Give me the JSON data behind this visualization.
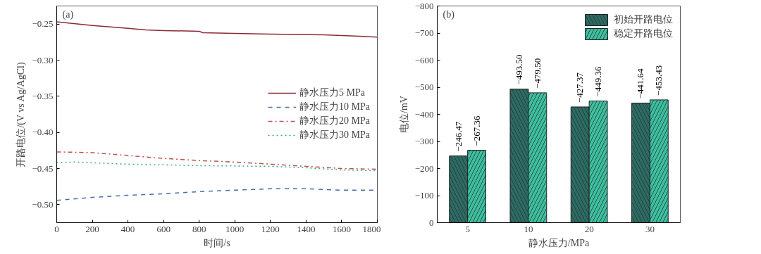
{
  "chart_data": [
    {
      "type": "line",
      "title": "(a)",
      "xlabel": "时间/s",
      "ylabel": "开路电位/(V vs Ag/AgCl)",
      "xlim": [
        0,
        1800
      ],
      "xticks": [
        0,
        200,
        400,
        600,
        800,
        1000,
        1200,
        1400,
        1600,
        1800
      ],
      "ylim": [
        -0.525,
        -0.225
      ],
      "yticks": [
        {
          "value": -0.5,
          "label": "−0.50"
        },
        {
          "value": -0.45,
          "label": "−0.45"
        },
        {
          "value": -0.4,
          "label": "−0.40"
        },
        {
          "value": -0.35,
          "label": "−0.35"
        },
        {
          "value": -0.3,
          "label": "−0.30"
        },
        {
          "value": -0.25,
          "label": "−0.25"
        }
      ],
      "grid": false,
      "legend": "right",
      "series": [
        {
          "name": "静水压力5 MPa",
          "color": "#8b2a3a",
          "line_style": "solid",
          "x": [
            0,
            200,
            400,
            500,
            600,
            800,
            820,
            1000,
            1200,
            1500,
            1700,
            1800
          ],
          "values": [
            -0.247,
            -0.252,
            -0.256,
            -0.258,
            -0.259,
            -0.26,
            -0.262,
            -0.263,
            -0.264,
            -0.265,
            -0.267,
            -0.268
          ]
        },
        {
          "name": "静水压力10 MPa",
          "color": "#4a6fa5",
          "line_style": "dashed",
          "x": [
            0,
            200,
            400,
            600,
            800,
            1000,
            1200,
            1400,
            1600,
            1800
          ],
          "values": [
            -0.494,
            -0.49,
            -0.487,
            -0.485,
            -0.482,
            -0.48,
            -0.478,
            -0.478,
            -0.48,
            -0.48
          ]
        },
        {
          "name": "静水压力20 MPa",
          "color": "#c0504d",
          "line_style": "dashdot",
          "x": [
            0,
            200,
            400,
            600,
            800,
            1000,
            1200,
            1400,
            1600,
            1800
          ],
          "values": [
            -0.427,
            -0.428,
            -0.432,
            -0.436,
            -0.439,
            -0.441,
            -0.444,
            -0.447,
            -0.45,
            -0.451
          ]
        },
        {
          "name": "静水压力30 MPa",
          "color": "#3aa88a",
          "line_style": "dotted",
          "x": [
            0,
            100,
            400,
            800,
            1200,
            1400,
            1600,
            1800
          ],
          "values": [
            -0.442,
            -0.441,
            -0.444,
            -0.446,
            -0.447,
            -0.449,
            -0.452,
            -0.453
          ]
        }
      ]
    },
    {
      "type": "bar",
      "title": "(b)",
      "xlabel": "静水压力/MPa",
      "ylabel": "电位/mV",
      "categories": [
        "5",
        "10",
        "20",
        "30"
      ],
      "ylim": [
        0,
        -800
      ],
      "yticks": [
        0,
        {
          "value": -100,
          "label": "−100"
        },
        {
          "value": -200,
          "label": "−200"
        },
        {
          "value": -300,
          "label": "−300"
        },
        {
          "value": -400,
          "label": "−400"
        },
        {
          "value": -500,
          "label": "−500"
        },
        {
          "value": -600,
          "label": "−600"
        },
        {
          "value": -700,
          "label": "−700"
        },
        {
          "value": -800,
          "label": "−800"
        }
      ],
      "grid": false,
      "legend": "top right",
      "series": [
        {
          "name": "初始开路电位",
          "color": "#2e6b62",
          "values": [
            -246.47,
            -493.5,
            -427.37,
            -441.64
          ],
          "value_labels": [
            "−246.47",
            "−493.50",
            "−427.37",
            "−441.64"
          ]
        },
        {
          "name": "稳定开路电位",
          "color": "#3fbf9f",
          "values": [
            -267.36,
            -479.5,
            -449.36,
            -453.43
          ],
          "value_labels": [
            "−267.36",
            "−479.50",
            "−449.36",
            "−453.43"
          ]
        }
      ]
    }
  ]
}
